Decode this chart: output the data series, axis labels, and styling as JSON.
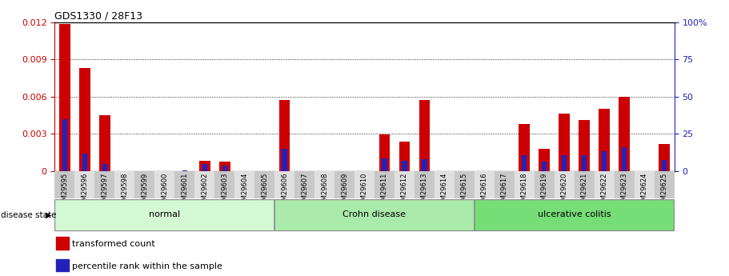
{
  "title": "GDS1330 / 28F13",
  "samples": [
    "GSM29595",
    "GSM29596",
    "GSM29597",
    "GSM29598",
    "GSM29599",
    "GSM29600",
    "GSM29601",
    "GSM29602",
    "GSM29603",
    "GSM29604",
    "GSM29605",
    "GSM29606",
    "GSM29607",
    "GSM29608",
    "GSM29609",
    "GSM29610",
    "GSM29611",
    "GSM29612",
    "GSM29613",
    "GSM29614",
    "GSM29615",
    "GSM29616",
    "GSM29617",
    "GSM29618",
    "GSM29619",
    "GSM29620",
    "GSM29621",
    "GSM29622",
    "GSM29623",
    "GSM29624",
    "GSM29625"
  ],
  "transformed_count": [
    0.01185,
    0.0083,
    0.0045,
    0.0,
    0.0,
    0.0,
    0.0,
    0.00085,
    0.00075,
    0.0,
    0.0,
    0.0057,
    0.0,
    0.0,
    0.0,
    0.0,
    0.00295,
    0.0024,
    0.0057,
    0.0,
    0.0,
    0.0,
    0.0,
    0.0038,
    0.0018,
    0.0046,
    0.0041,
    0.005,
    0.006,
    0.0,
    0.0022
  ],
  "percentile_rank_scaled": [
    0.0042,
    0.0014,
    0.00055,
    0.0,
    0.0,
    0.0,
    8e-05,
    0.00055,
    0.00045,
    0.0,
    0.0,
    0.0018,
    0.0,
    0.0,
    0.0,
    0.0,
    0.00105,
    0.00085,
    0.00095,
    0.0,
    0.0,
    0.0,
    0.0,
    0.0013,
    0.00075,
    0.0013,
    0.0013,
    0.0016,
    0.0019,
    0.0,
    0.0009
  ],
  "groups": [
    {
      "label": "normal",
      "start": 0,
      "end": 10,
      "color": "#d4f7d4"
    },
    {
      "label": "Crohn disease",
      "start": 11,
      "end": 20,
      "color": "#aaeaaa"
    },
    {
      "label": "ulcerative colitis",
      "start": 21,
      "end": 30,
      "color": "#77dd77"
    }
  ],
  "bar_color": "#cc0000",
  "blue_color": "#2222bb",
  "ylim_left": [
    0,
    0.012
  ],
  "ylim_right": [
    0,
    100
  ],
  "yticks_left": [
    0,
    0.003,
    0.006,
    0.009,
    0.012
  ],
  "yticks_right": [
    0,
    25,
    50,
    75,
    100
  ],
  "bar_width": 0.55,
  "blue_bar_width": 0.25,
  "grid_color": "#000000",
  "disease_state_label": "disease state",
  "legend_items": [
    {
      "label": "transformed count",
      "color": "#cc0000"
    },
    {
      "label": "percentile rank within the sample",
      "color": "#2222bb"
    }
  ]
}
